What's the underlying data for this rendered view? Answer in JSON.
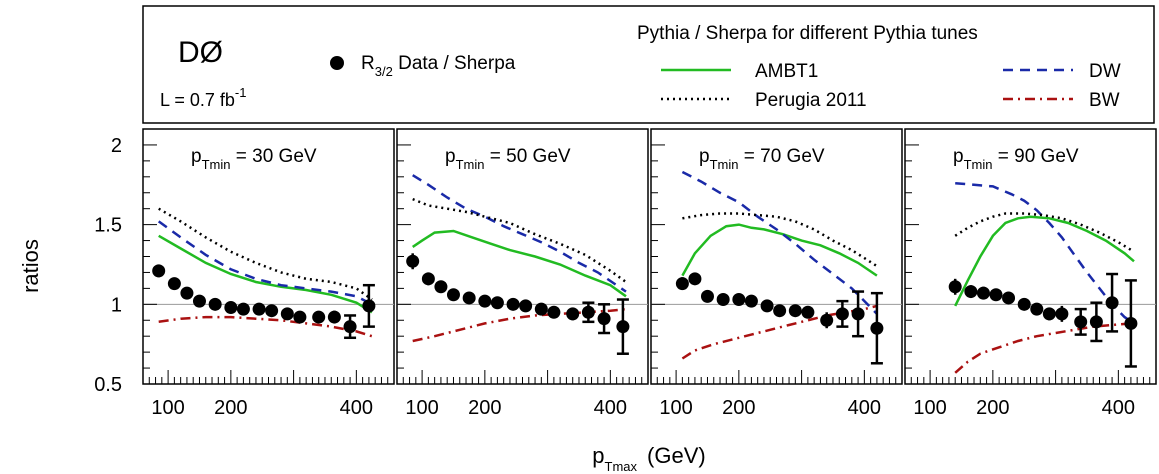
{
  "chart_data": {
    "type": "line",
    "ylabel": "ratios",
    "xlabel": "p",
    "xlabel_sub": "Tmax",
    "xlabel_unit": "(GeV)",
    "ylim": [
      0.5,
      2.1
    ],
    "xlim": [
      60,
      460
    ],
    "yticks": [
      0.5,
      1,
      1.5,
      2
    ],
    "ytick_labels": [
      "0.5",
      "1",
      "1.5",
      "2"
    ],
    "xticks": [
      100,
      200,
      300,
      400
    ],
    "xtick_labels": [
      "100",
      "200",
      "400"
    ],
    "xtick_labeled_values": [
      100,
      200,
      400
    ],
    "reference_line": 1,
    "header": {
      "experiment": "DØ",
      "lumi_prefix": "L = 0.7 fb",
      "lumi_sup": "-1",
      "data_prefix": "R",
      "data_sub": "3/2",
      "data_suffix": " Data / Sherpa",
      "models_title": "Pythia / Sherpa  for different Pythia tunes",
      "legend": [
        {
          "key": "ambt1",
          "label": "AMBT1",
          "color": "#22bb22",
          "dash": "solid"
        },
        {
          "key": "dw",
          "label": "DW",
          "color": "#1a2aa8",
          "dash": "dashed"
        },
        {
          "key": "perugia",
          "label": "Perugia 2011",
          "color": "#000000",
          "dash": "dotted"
        },
        {
          "key": "bw",
          "label": "BW",
          "color": "#aa1111",
          "dash": "dashdot"
        }
      ]
    },
    "panels": [
      {
        "label_prefix": "p",
        "label_sub": "Tmin",
        "label_suffix": " = 30 GeV",
        "data": {
          "x": [
            85,
            110,
            130,
            150,
            175,
            200,
            220,
            245,
            265,
            290,
            310,
            340,
            365,
            390,
            420
          ],
          "y": [
            1.21,
            1.13,
            1.07,
            1.02,
            1.0,
            0.98,
            0.97,
            0.97,
            0.96,
            0.94,
            0.92,
            0.92,
            0.92,
            0.86,
            0.99
          ],
          "err": [
            0.04,
            0.03,
            0.03,
            0.02,
            0.02,
            0.02,
            0.02,
            0.02,
            0.02,
            0.02,
            0.02,
            0.03,
            0.04,
            0.07,
            0.13
          ]
        },
        "series": [
          {
            "key": "ambt1",
            "x": [
              85,
              120,
              160,
              200,
              240,
              280,
              320,
              360,
              400,
              425
            ],
            "y": [
              1.43,
              1.35,
              1.26,
              1.19,
              1.14,
              1.11,
              1.09,
              1.06,
              1.01,
              0.95
            ]
          },
          {
            "key": "dw",
            "x": [
              85,
              120,
              160,
              200,
              240,
              280,
              320,
              360,
              400,
              425
            ],
            "y": [
              1.52,
              1.42,
              1.31,
              1.22,
              1.16,
              1.12,
              1.1,
              1.08,
              1.05,
              1.0
            ]
          },
          {
            "key": "perugia",
            "x": [
              85,
              120,
              160,
              200,
              240,
              280,
              320,
              360,
              400,
              425
            ],
            "y": [
              1.6,
              1.52,
              1.42,
              1.33,
              1.26,
              1.2,
              1.16,
              1.14,
              1.1,
              1.03
            ]
          },
          {
            "key": "bw",
            "x": [
              85,
              120,
              160,
              200,
              240,
              280,
              320,
              360,
              400,
              425
            ],
            "y": [
              0.89,
              0.91,
              0.92,
              0.92,
              0.91,
              0.9,
              0.88,
              0.86,
              0.83,
              0.8
            ]
          }
        ]
      },
      {
        "label_prefix": "p",
        "label_sub": "Tmin",
        "label_suffix": " = 50 GeV",
        "data": {
          "x": [
            85,
            110,
            130,
            150,
            175,
            200,
            220,
            245,
            265,
            290,
            310,
            340,
            365,
            390,
            420
          ],
          "y": [
            1.27,
            1.16,
            1.11,
            1.06,
            1.04,
            1.02,
            1.01,
            1.0,
            0.99,
            0.97,
            0.95,
            0.94,
            0.95,
            0.91,
            0.86
          ],
          "err": [
            0.05,
            0.04,
            0.03,
            0.03,
            0.02,
            0.02,
            0.02,
            0.02,
            0.02,
            0.02,
            0.03,
            0.04,
            0.06,
            0.09,
            0.17
          ]
        },
        "series": [
          {
            "key": "ambt1",
            "x": [
              85,
              100,
              120,
              150,
              180,
              210,
              240,
              280,
              320,
              360,
              400,
              425
            ],
            "y": [
              1.36,
              1.4,
              1.45,
              1.46,
              1.42,
              1.38,
              1.34,
              1.3,
              1.25,
              1.18,
              1.12,
              1.05
            ]
          },
          {
            "key": "dw",
            "x": [
              85,
              110,
              140,
              170,
              200,
              230,
              260,
              290,
              320,
              350,
              380,
              410,
              425
            ],
            "y": [
              1.81,
              1.75,
              1.67,
              1.6,
              1.55,
              1.49,
              1.44,
              1.39,
              1.33,
              1.26,
              1.2,
              1.12,
              1.08
            ]
          },
          {
            "key": "perugia",
            "x": [
              85,
              110,
              140,
              170,
              200,
              240,
              280,
              320,
              360,
              400,
              425
            ],
            "y": [
              1.66,
              1.62,
              1.6,
              1.58,
              1.55,
              1.51,
              1.44,
              1.38,
              1.31,
              1.21,
              1.14
            ]
          },
          {
            "key": "bw",
            "x": [
              85,
              120,
              160,
              200,
              240,
              280,
              320,
              360,
              400,
              425
            ],
            "y": [
              0.77,
              0.8,
              0.84,
              0.88,
              0.91,
              0.93,
              0.94,
              0.95,
              0.96,
              0.97
            ]
          }
        ]
      },
      {
        "label_prefix": "p",
        "label_sub": "Tmin",
        "label_suffix": " = 70 GeV",
        "data": {
          "x": [
            110,
            130,
            150,
            175,
            200,
            220,
            245,
            265,
            290,
            310,
            340,
            365,
            390,
            420
          ],
          "y": [
            1.13,
            1.16,
            1.05,
            1.03,
            1.03,
            1.02,
            0.99,
            0.96,
            0.96,
            0.95,
            0.9,
            0.94,
            0.94,
            0.85
          ],
          "err": [
            0.04,
            0.03,
            0.03,
            0.03,
            0.02,
            0.02,
            0.02,
            0.02,
            0.03,
            0.03,
            0.05,
            0.08,
            0.14,
            0.22
          ]
        },
        "series": [
          {
            "key": "ambt1",
            "x": [
              110,
              130,
              155,
              180,
              200,
              220,
              240,
              270,
              300,
              330,
              360,
              390,
              420
            ],
            "y": [
              1.18,
              1.32,
              1.43,
              1.49,
              1.5,
              1.48,
              1.47,
              1.44,
              1.4,
              1.37,
              1.32,
              1.26,
              1.18
            ]
          },
          {
            "key": "dw",
            "x": [
              110,
              140,
              170,
              200,
              230,
              260,
              290,
              320,
              350,
              380,
              400,
              420
            ],
            "y": [
              1.83,
              1.77,
              1.7,
              1.64,
              1.55,
              1.47,
              1.38,
              1.28,
              1.19,
              1.1,
              1.02,
              0.94
            ]
          },
          {
            "key": "perugia",
            "x": [
              110,
              140,
              170,
              200,
              230,
              260,
              290,
              320,
              350,
              380,
              400,
              420
            ],
            "y": [
              1.54,
              1.56,
              1.57,
              1.57,
              1.56,
              1.55,
              1.52,
              1.47,
              1.4,
              1.34,
              1.29,
              1.24
            ]
          },
          {
            "key": "bw",
            "x": [
              110,
              130,
              160,
              190,
              220,
              250,
              280,
              310,
              340,
              370,
              400,
              420
            ],
            "y": [
              0.66,
              0.71,
              0.75,
              0.78,
              0.81,
              0.84,
              0.87,
              0.9,
              0.93,
              0.95,
              0.97,
              0.99
            ]
          }
        ]
      },
      {
        "label_prefix": "p",
        "label_sub": "Tmin",
        "label_suffix": " = 90 GeV",
        "data": {
          "x": [
            140,
            165,
            185,
            205,
            225,
            250,
            270,
            290,
            310,
            340,
            365,
            390,
            420
          ],
          "y": [
            1.11,
            1.08,
            1.07,
            1.06,
            1.04,
            1.0,
            0.97,
            0.94,
            0.94,
            0.89,
            0.89,
            1.01,
            0.88
          ],
          "err": [
            0.05,
            0.04,
            0.04,
            0.03,
            0.03,
            0.03,
            0.03,
            0.04,
            0.05,
            0.08,
            0.12,
            0.18,
            0.27
          ]
        },
        "series": [
          {
            "key": "ambt1",
            "x": [
              140,
              160,
              180,
              200,
              220,
              240,
              260,
              290,
              320,
              350,
              380,
              410,
              425
            ],
            "y": [
              0.99,
              1.15,
              1.3,
              1.43,
              1.51,
              1.54,
              1.55,
              1.54,
              1.51,
              1.46,
              1.4,
              1.32,
              1.27
            ]
          },
          {
            "key": "dw",
            "x": [
              140,
              170,
              200,
              230,
              250,
              270,
              290,
              310,
              330,
              350,
              370,
              390,
              410,
              425
            ],
            "y": [
              1.76,
              1.75,
              1.74,
              1.69,
              1.65,
              1.59,
              1.51,
              1.42,
              1.31,
              1.2,
              1.1,
              1.0,
              0.92,
              0.88
            ]
          },
          {
            "key": "perugia",
            "x": [
              140,
              160,
              180,
              200,
              220,
              250,
              280,
              310,
              340,
              370,
              400,
              425
            ],
            "y": [
              1.43,
              1.48,
              1.52,
              1.55,
              1.57,
              1.57,
              1.56,
              1.54,
              1.5,
              1.45,
              1.39,
              1.33
            ]
          },
          {
            "key": "bw",
            "x": [
              140,
              160,
              180,
              210,
              240,
              270,
              300,
              330,
              360,
              390,
              420
            ],
            "y": [
              0.57,
              0.64,
              0.69,
              0.73,
              0.77,
              0.8,
              0.82,
              0.84,
              0.86,
              0.87,
              0.88
            ]
          }
        ]
      }
    ]
  }
}
